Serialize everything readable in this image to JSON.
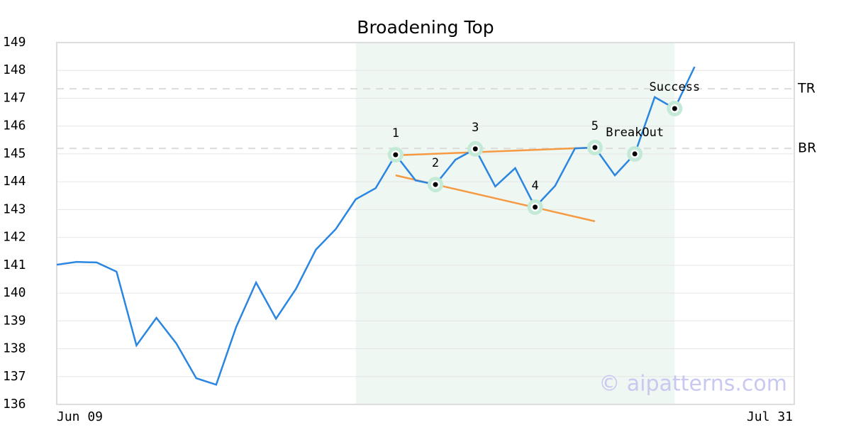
{
  "chart_data": {
    "type": "line",
    "title": "Broadening Top",
    "categories": [
      "Jun 09",
      null,
      null,
      null,
      null,
      null,
      null,
      null,
      null,
      null,
      null,
      null,
      null,
      null,
      null,
      null,
      null,
      null,
      null,
      null,
      null,
      null,
      null,
      null,
      null,
      null,
      null,
      null,
      null,
      null,
      null,
      null,
      null,
      null,
      null,
      null,
      null,
      "Jul 31"
    ],
    "values": [
      141.02,
      141.12,
      141.1,
      140.77,
      138.12,
      139.11,
      138.19,
      136.94,
      136.71,
      138.78,
      140.38,
      139.08,
      140.15,
      141.56,
      142.3,
      143.37,
      143.77,
      144.97,
      144.05,
      143.9,
      144.79,
      145.18,
      143.83,
      144.49,
      143.09,
      143.85,
      145.2,
      145.23,
      144.23,
      145.0,
      147.04,
      146.63,
      148.13,
      null,
      null,
      null,
      null,
      null
    ],
    "color": "#2a86e0",
    "ylim": [
      136,
      149
    ],
    "yticks": [
      136,
      137,
      138,
      139,
      140,
      141,
      142,
      143,
      144,
      145,
      146,
      147,
      148,
      149
    ],
    "grid": true,
    "shaded_range": [
      15,
      31
    ],
    "shade_color": "#eef7f2",
    "levels": [
      {
        "label": "TR",
        "value": 147.34
      },
      {
        "label": "BR",
        "value": 145.2
      }
    ],
    "trendlines": [
      {
        "x": [
          17,
          27
        ],
        "y": [
          144.95,
          145.23
        ]
      },
      {
        "x": [
          17,
          27
        ],
        "y": [
          144.23,
          142.58
        ]
      }
    ],
    "trend_color": "#f59a42",
    "points": [
      {
        "label": "1",
        "index": 17
      },
      {
        "label": "2",
        "index": 19
      },
      {
        "label": "3",
        "index": 21
      },
      {
        "label": "4",
        "index": 24
      },
      {
        "label": "5",
        "index": 27
      },
      {
        "label": "BreakOut",
        "index": 29
      },
      {
        "label": "Success",
        "index": 31
      }
    ],
    "watermark": "© aipatterns.com"
  }
}
